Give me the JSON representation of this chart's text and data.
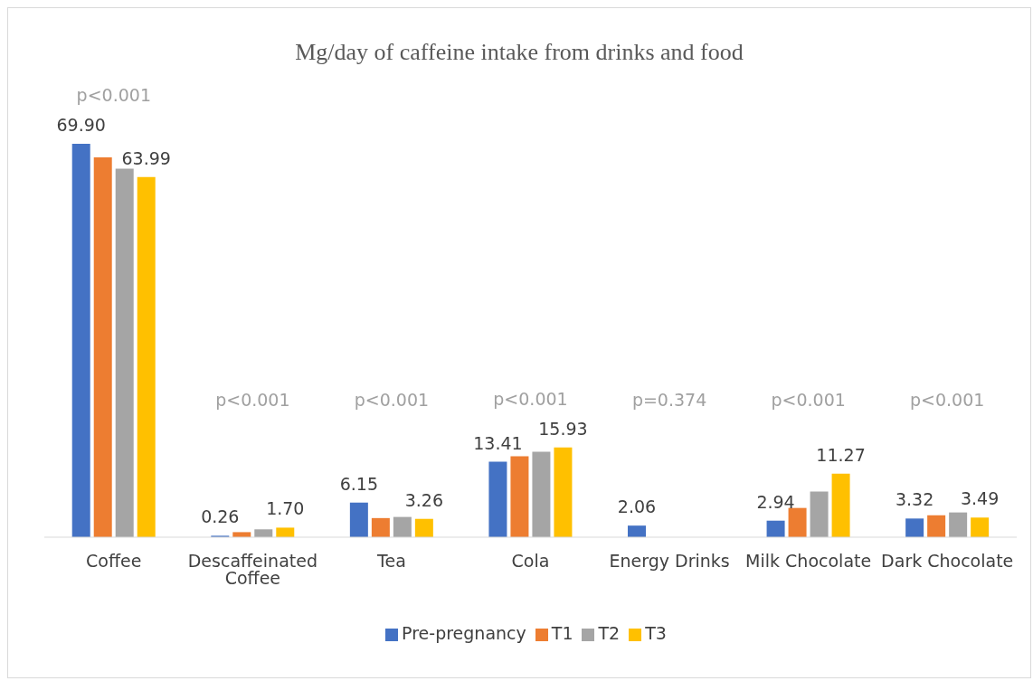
{
  "chart_data": {
    "type": "bar",
    "title": "Mg/day of caffeine intake from drinks and food",
    "categories": [
      "Coffee",
      "Descaffeinated Coffee",
      "Tea",
      "Cola",
      "Energy Drinks",
      "Milk Chocolate",
      "Dark Chocolate"
    ],
    "series": [
      {
        "name": "Pre-pregnancy",
        "color": "#4472c4",
        "values": [
          69.9,
          0.26,
          6.15,
          13.41,
          2.06,
          2.94,
          3.32
        ],
        "value_labels": [
          "69.90",
          "0.26",
          "6.15",
          "13.41",
          "2.06",
          "2.94",
          "3.32"
        ]
      },
      {
        "name": "T1",
        "color": "#ed7d31",
        "values": [
          67.5,
          0.9,
          3.4,
          14.4,
          0,
          5.2,
          3.9
        ],
        "value_labels": [
          null,
          null,
          null,
          null,
          null,
          null,
          null
        ]
      },
      {
        "name": "T2",
        "color": "#a5a5a5",
        "values": [
          65.5,
          1.4,
          3.6,
          15.2,
          0,
          8.1,
          4.4
        ],
        "value_labels": [
          null,
          null,
          null,
          null,
          null,
          null,
          null
        ]
      },
      {
        "name": "T3",
        "color": "#ffc000",
        "values": [
          63.99,
          1.7,
          3.26,
          15.93,
          0,
          11.27,
          3.49
        ],
        "value_labels": [
          "63.99",
          "1.70",
          "3.26",
          "15.93",
          null,
          "11.27",
          "3.49"
        ]
      }
    ],
    "annotations": [
      "p<0.001",
      "p<0.001",
      "p<0.001",
      "p<0.001",
      "p=0.374",
      "p<0.001",
      "p<0.001"
    ],
    "legend": "bottom",
    "grid": false
  }
}
